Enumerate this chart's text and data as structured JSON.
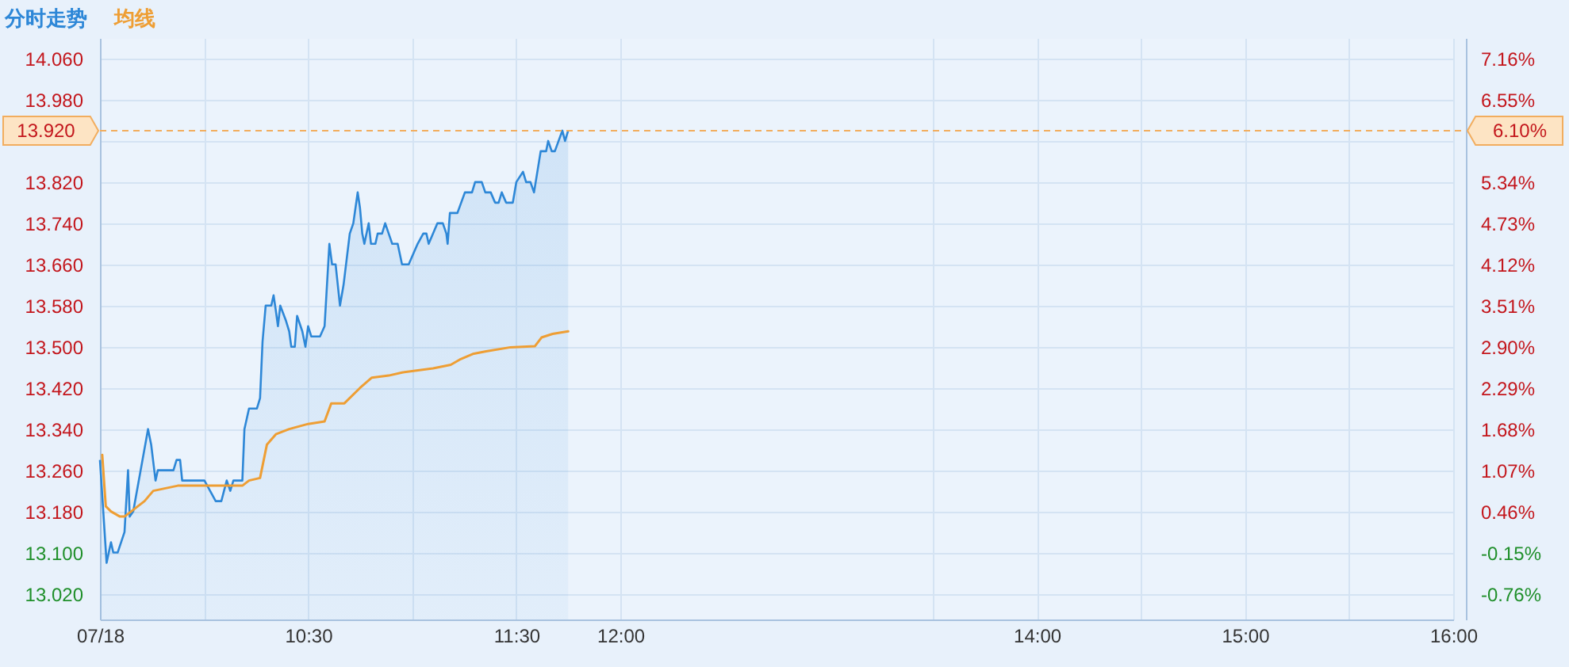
{
  "chart_data": {
    "type": "line",
    "xlim": [
      9.5,
      16
    ],
    "xticks": [
      {
        "value": 9.5,
        "label": "07/18"
      },
      {
        "value": 10,
        "label": null
      },
      {
        "value": 10.5,
        "label": "10:30"
      },
      {
        "value": 11,
        "label": null
      },
      {
        "value": 11.5,
        "label": "11:30"
      },
      {
        "value": 12,
        "label": "12:00"
      },
      {
        "value": 13.5,
        "label": null
      },
      {
        "value": 14,
        "label": "14:00"
      },
      {
        "value": 14.5,
        "label": null
      },
      {
        "value": 15,
        "label": "15:00"
      },
      {
        "value": 15.5,
        "label": null
      },
      {
        "value": 16,
        "label": "16:00"
      }
    ],
    "ylim": [
      12.97,
      14.1
    ],
    "yticks": [
      {
        "value": 13.02,
        "label": "13.020"
      },
      {
        "value": 13.1,
        "label": "13.100"
      },
      {
        "value": 13.18,
        "label": "13.180"
      },
      {
        "value": 13.26,
        "label": "13.260"
      },
      {
        "value": 13.34,
        "label": "13.340"
      },
      {
        "value": 13.42,
        "label": "13.420"
      },
      {
        "value": 13.5,
        "label": "13.500"
      },
      {
        "value": 13.58,
        "label": "13.580"
      },
      {
        "value": 13.66,
        "label": "13.660"
      },
      {
        "value": 13.74,
        "label": "13.740"
      },
      {
        "value": 13.82,
        "label": "13.820"
      },
      {
        "value": 13.9,
        "label": null
      },
      {
        "value": 13.98,
        "label": "13.980"
      },
      {
        "value": 14.06,
        "label": "14.060"
      }
    ],
    "y2lim": [
      -1.14,
      7.47
    ],
    "y2ticks": [
      {
        "value": -0.76,
        "label": "-0.76%"
      },
      {
        "value": -0.15,
        "label": "-0.15%"
      },
      {
        "value": 0.46,
        "label": "0.46%"
      },
      {
        "value": 1.07,
        "label": "1.07%"
      },
      {
        "value": 1.68,
        "label": "1.68%"
      },
      {
        "value": 2.29,
        "label": "2.29%"
      },
      {
        "value": 2.9,
        "label": "2.90%"
      },
      {
        "value": 3.51,
        "label": "3.51%"
      },
      {
        "value": 4.12,
        "label": "4.12%"
      },
      {
        "value": 4.73,
        "label": "4.73%"
      },
      {
        "value": 5.34,
        "label": "5.34%"
      },
      {
        "value": 5.95,
        "label": null
      },
      {
        "value": 6.55,
        "label": "6.55%"
      },
      {
        "value": 7.16,
        "label": "7.16%"
      }
    ],
    "series": [
      {
        "name": "分时走势",
        "type": "area",
        "color": "#2d87d7",
        "x": [
          9.5,
          9.532,
          9.553,
          9.564,
          9.585,
          9.618,
          9.635,
          9.643,
          9.66,
          9.731,
          9.746,
          9.767,
          9.778,
          9.853,
          9.868,
          9.885,
          9.895,
          10.002,
          10.056,
          10.083,
          10.109,
          10.126,
          10.141,
          10.184,
          10.194,
          10.216,
          10.254,
          10.269,
          10.281,
          10.296,
          10.323,
          10.334,
          10.345,
          10.355,
          10.366,
          10.394,
          10.409,
          10.419,
          10.436,
          10.447,
          10.472,
          10.487,
          10.5,
          10.515,
          10.557,
          10.579,
          10.602,
          10.615,
          10.632,
          10.653,
          10.67,
          10.7,
          10.717,
          10.738,
          10.749,
          10.76,
          10.77,
          10.791,
          10.802,
          10.823,
          10.834,
          10.855,
          10.87,
          10.904,
          10.93,
          10.951,
          10.983,
          11.026,
          11.053,
          11.068,
          11.079,
          11.121,
          11.147,
          11.164,
          11.17,
          11.181,
          11.217,
          11.253,
          11.287,
          11.302,
          11.334,
          11.351,
          11.377,
          11.398,
          11.415,
          11.43,
          11.451,
          11.483,
          11.5,
          11.532,
          11.547,
          11.568,
          11.585,
          11.617,
          11.643,
          11.653,
          11.67,
          11.685,
          11.721,
          11.734,
          11.749
        ],
        "values": [
          13.28,
          13.08,
          13.12,
          13.1,
          13.1,
          13.14,
          13.26,
          13.17,
          13.18,
          13.34,
          13.31,
          13.24,
          13.26,
          13.26,
          13.28,
          13.28,
          13.24,
          13.24,
          13.2,
          13.2,
          13.24,
          13.22,
          13.24,
          13.24,
          13.34,
          13.38,
          13.38,
          13.4,
          13.51,
          13.58,
          13.58,
          13.6,
          13.57,
          13.54,
          13.58,
          13.55,
          13.53,
          13.5,
          13.5,
          13.56,
          13.53,
          13.5,
          13.54,
          13.52,
          13.52,
          13.54,
          13.7,
          13.66,
          13.66,
          13.58,
          13.62,
          13.72,
          13.74,
          13.8,
          13.77,
          13.72,
          13.7,
          13.74,
          13.7,
          13.7,
          13.72,
          13.72,
          13.74,
          13.7,
          13.7,
          13.66,
          13.66,
          13.7,
          13.72,
          13.72,
          13.7,
          13.74,
          13.74,
          13.72,
          13.7,
          13.76,
          13.76,
          13.8,
          13.8,
          13.82,
          13.82,
          13.8,
          13.8,
          13.78,
          13.78,
          13.8,
          13.78,
          13.78,
          13.82,
          13.84,
          13.82,
          13.82,
          13.8,
          13.88,
          13.88,
          13.9,
          13.88,
          13.88,
          13.92,
          13.9,
          13.92
        ]
      },
      {
        "name": "均线",
        "color": "#ee9e34",
        "x": [
          9.511,
          9.528,
          9.553,
          9.596,
          9.618,
          9.65,
          9.682,
          9.714,
          9.756,
          9.874,
          10.002,
          10.184,
          10.216,
          10.269,
          10.302,
          10.345,
          10.409,
          10.5,
          10.579,
          10.611,
          10.674,
          10.749,
          10.806,
          10.887,
          10.951,
          11.1,
          11.185,
          11.228,
          11.291,
          11.355,
          11.472,
          11.589,
          11.621,
          11.674,
          11.749
        ],
        "values": [
          13.29,
          13.19,
          13.18,
          13.17,
          13.17,
          13.18,
          13.19,
          13.2,
          13.22,
          13.23,
          13.23,
          13.23,
          13.24,
          13.245,
          13.31,
          13.33,
          13.34,
          13.35,
          13.355,
          13.39,
          13.39,
          13.42,
          13.44,
          13.444,
          13.45,
          13.458,
          13.465,
          13.475,
          13.486,
          13.491,
          13.499,
          13.501,
          13.518,
          13.525,
          13.53
        ]
      }
    ],
    "ref_lines": [
      {
        "axis": "y",
        "value": 13.92,
        "label": "13.920",
        "color": "#f2ad5e",
        "line_style": "dashed"
      }
    ],
    "annotations": [
      "6.10%"
    ],
    "grid": true,
    "legend": "top left"
  }
}
